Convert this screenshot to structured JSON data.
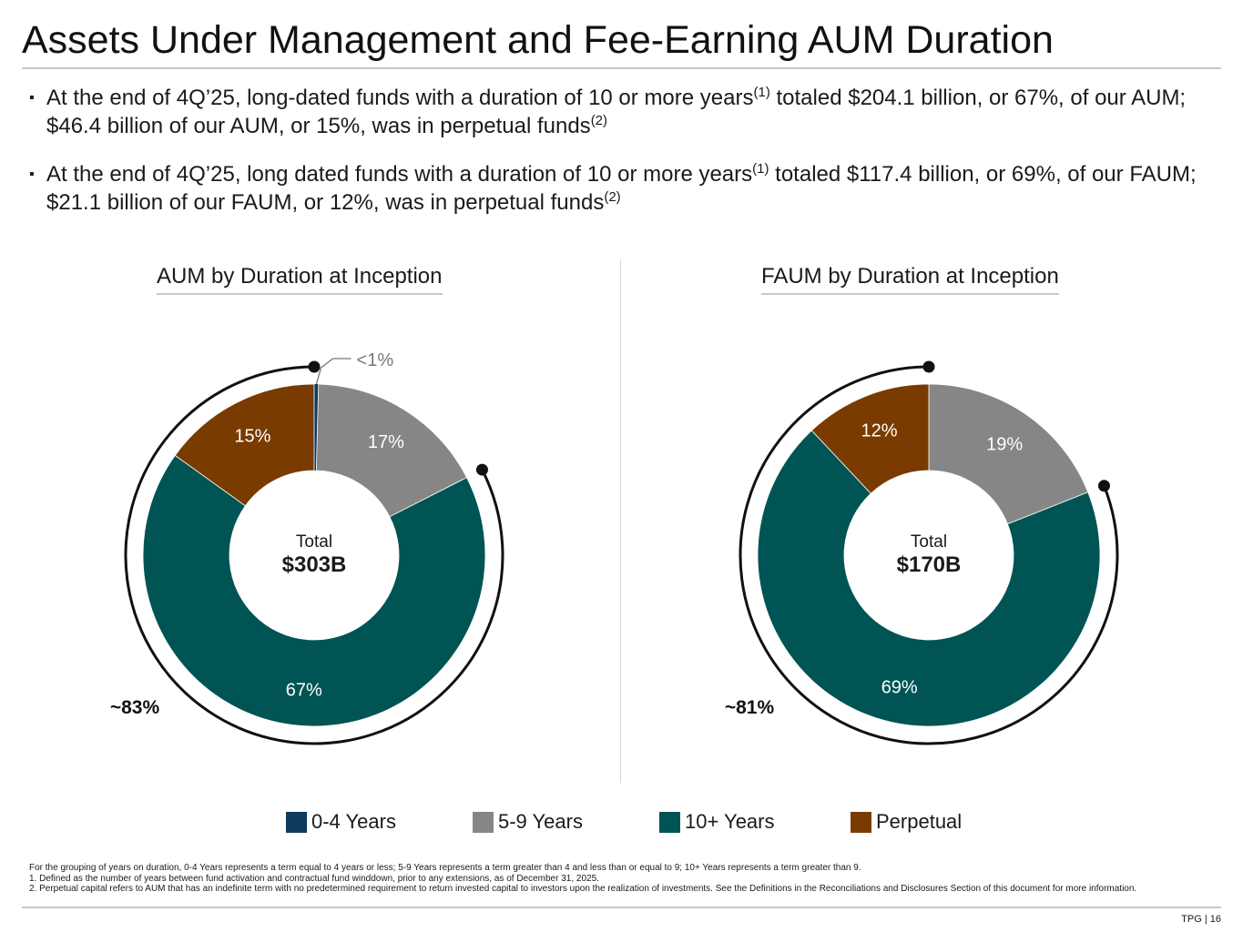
{
  "title": "Assets Under Management and Fee-Earning AUM Duration",
  "bullets": [
    {
      "t1": "At the end of 4Q’25, long-dated funds with a duration of 10 or more years",
      "s1": "(1)",
      "t2": " totaled $204.1 billion, or 67%, of our AUM; $46.4 billion of our AUM, or 15%, was in perpetual funds",
      "s2": "(2)"
    },
    {
      "t1": "At the end of 4Q’25, long dated funds with a duration of 10 or more years",
      "s1": "(1)",
      "t2": " totaled $117.4 billion, or 69%, of our FAUM; $21.1 billion of our FAUM, or 12%, was in perpetual funds",
      "s2": "(2)"
    }
  ],
  "bullet_mark": "▪",
  "colors": {
    "0-4 Years": "#0f3a5c",
    "5-9 Years": "#868686",
    "10+ Years": "#005454",
    "Perpetual": "#7a3b00"
  },
  "legend": [
    "0-4 Years",
    "5-9 Years",
    "10+ Years",
    "Perpetual"
  ],
  "chart_data": [
    {
      "type": "pie",
      "title": "AUM by Duration at Inception",
      "center_label": "Total",
      "center_value": "$303B",
      "categories": [
        "0-4 Years",
        "5-9 Years",
        "10+ Years",
        "Perpetual"
      ],
      "values": [
        0.4,
        17,
        67,
        15
      ],
      "data_labels": [
        "<1%",
        "17%",
        "67%",
        "15%"
      ],
      "bracket_label": "~83%",
      "bracket_covers": [
        "10+ Years",
        "Perpetual"
      ]
    },
    {
      "type": "pie",
      "title": "FAUM by Duration at Inception",
      "center_label": "Total",
      "center_value": "$170B",
      "categories": [
        "0-4 Years",
        "5-9 Years",
        "10+ Years",
        "Perpetual"
      ],
      "values": [
        0,
        19,
        69,
        12
      ],
      "data_labels": [
        "",
        "19%",
        "69%",
        "12%"
      ],
      "bracket_label": "~81%",
      "bracket_covers": [
        "10+ Years",
        "Perpetual"
      ]
    }
  ],
  "footnotes": [
    "For the grouping of years on duration, 0-4 Years represents a term equal to 4 years or less; 5-9 Years represents a term greater than 4 and less than or equal to 9; 10+ Years represents a term greater than 9.",
    "1. Defined as the number of years between fund activation and contractual fund winddown, prior to any extensions, as of December 31, 2025.",
    "2. Perpetual capital refers to AUM that has an indefinite term with no predetermined requirement to return invested capital to investors upon the realization of investments. See the Definitions in the Reconciliations and Disclosures Section of this document for more information."
  ],
  "page_number": "TPG | 16"
}
